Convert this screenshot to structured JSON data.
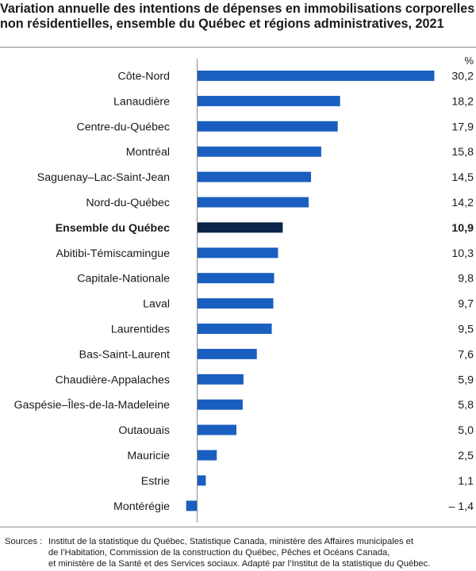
{
  "chart_data": {
    "type": "bar",
    "orientation": "horizontal",
    "title_lines": [
      "Variation annuelle des intentions de dépenses en immobilisations corporelles",
      "non résidentielles, ensemble du Québec et régions administratives, 2021"
    ],
    "unit": "%",
    "categories": [
      "Côte-Nord",
      "Lanaudière",
      "Centre-du-Québec",
      "Montréal",
      "Saguenay–Lac-Saint-Jean",
      "Nord-du-Québec",
      "Ensemble du Québec",
      "Abitibi-Témiscamingue",
      "Capitale-Nationale",
      "Laval",
      "Laurentides",
      "Bas-Saint-Laurent",
      "Chaudière-Appalaches",
      "Gaspésie–Îles-de-la-Madeleine",
      "Outaouais",
      "Mauricie",
      "Estrie",
      "Montérégie"
    ],
    "values": [
      30.2,
      18.2,
      17.9,
      15.8,
      14.5,
      14.2,
      10.9,
      10.3,
      9.8,
      9.7,
      9.5,
      7.6,
      5.9,
      5.8,
      5.0,
      2.5,
      1.1,
      -1.4
    ],
    "value_labels": [
      "30,2",
      "18,2",
      "17,9",
      "15,8",
      "14,5",
      "14,2",
      "10,9",
      "10,3",
      "9,8",
      "9,7",
      "9,5",
      "7,6",
      "5,9",
      "5,8",
      "5,0",
      "2,5",
      "1,1",
      "– 1,4"
    ],
    "highlight_category": "Ensemble du Québec",
    "colors": {
      "bar": "#1a5fc0",
      "highlight_bar": "#0b2447",
      "axis": "#8a8a8a",
      "text": "#1a1a1a"
    },
    "grid": false,
    "legend": false
  },
  "sources": {
    "label": "Sources :",
    "lines": [
      "Institut de la statistique du Québec, Statistique Canada, ministère des Affaires municipales et",
      "de l’Habitation, Commission de la construction du Québec, Pêches et Océans Canada,",
      "et ministère de la Santé et des Services sociaux. Adapté par l’Institut de la statistique du Québec."
    ]
  }
}
